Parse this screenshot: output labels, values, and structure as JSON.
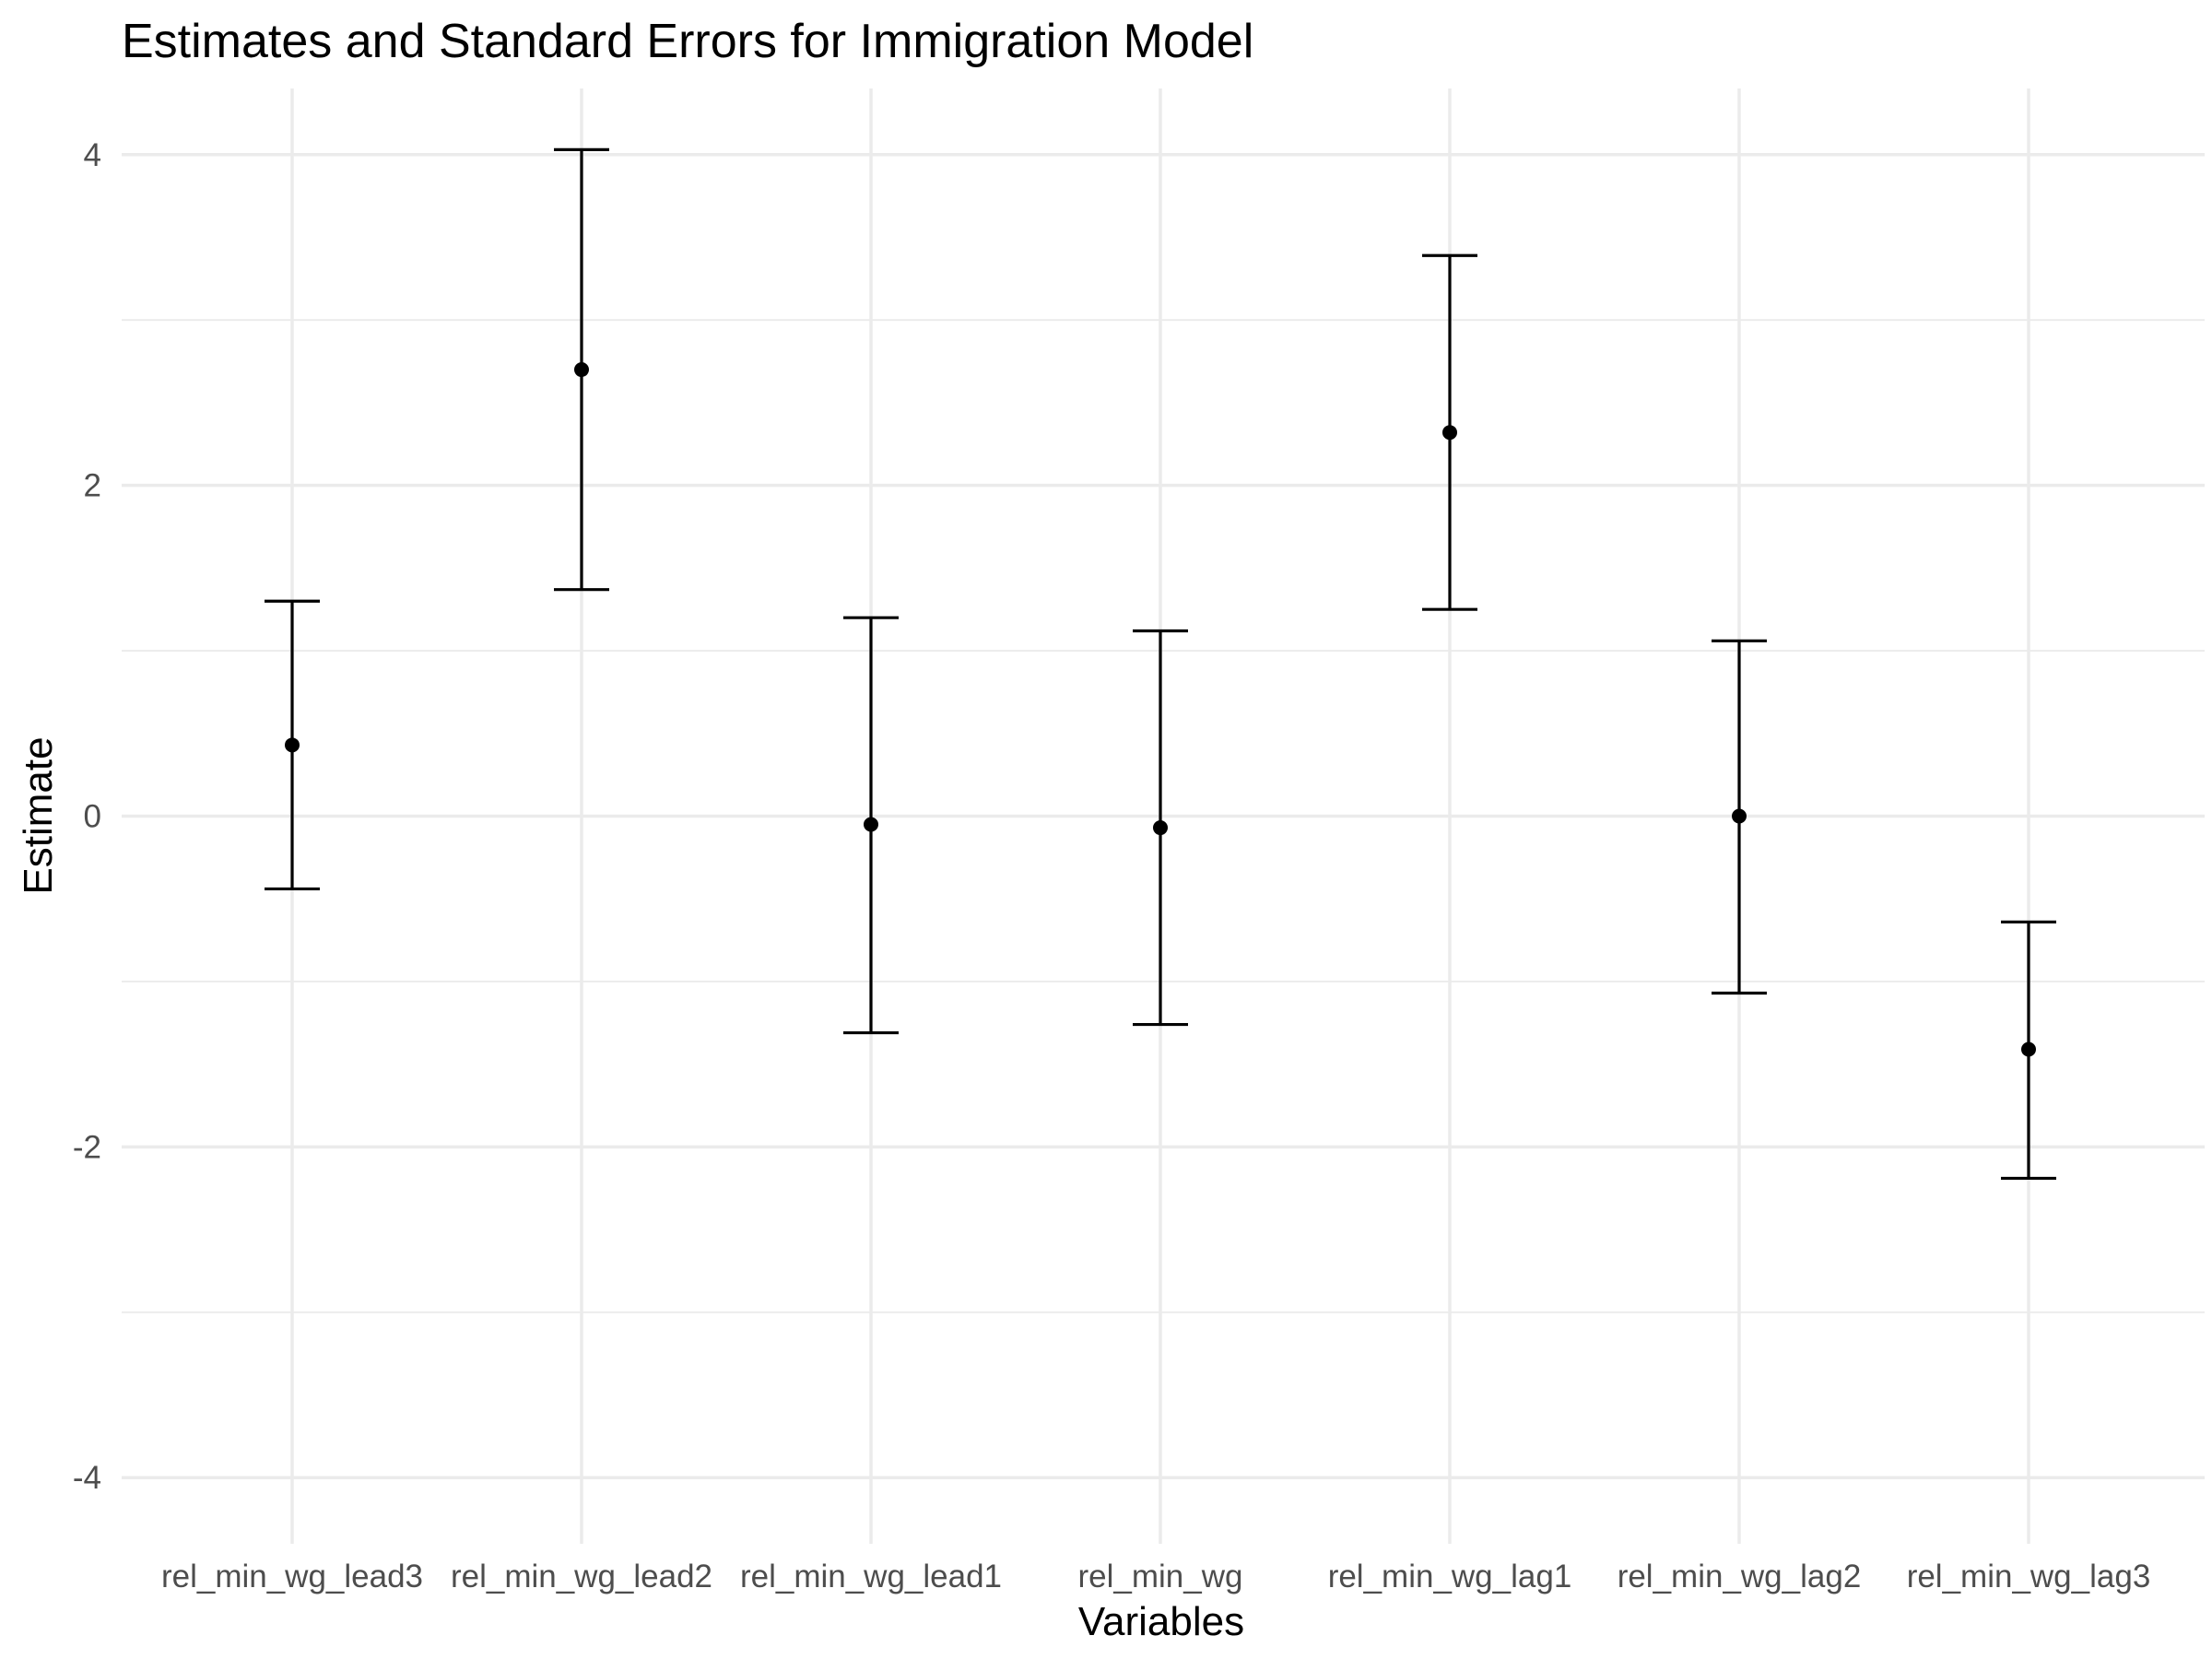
{
  "chart_data": {
    "type": "scatter",
    "title": "Estimates and Standard Errors for Immigration Model",
    "xlabel": "Variables",
    "ylabel": "Estimate",
    "ylim": [
      -4.4,
      4.4
    ],
    "y_ticks": [
      -4,
      -2,
      0,
      2,
      4
    ],
    "y_tick_labels": [
      "-4",
      "-2",
      "0",
      "2",
      "4"
    ],
    "grid": true,
    "legend": "none",
    "categories": [
      "rel_min_wg_lead3",
      "rel_min_wg_lead2",
      "rel_min_wg_lead1",
      "rel_min_wg",
      "rel_min_wg_lag1",
      "rel_min_wg_lag2",
      "rel_min_wg_lag3"
    ],
    "series": [
      {
        "estimates": [
          0.43,
          2.7,
          -0.05,
          -0.07,
          2.32,
          0.0,
          -1.41
        ],
        "lower": [
          -0.44,
          1.37,
          -1.31,
          -1.26,
          1.25,
          -1.07,
          -2.19
        ],
        "upper": [
          1.3,
          4.03,
          1.2,
          1.12,
          3.39,
          1.06,
          -0.64
        ]
      }
    ],
    "colors": {
      "marks": "#000000",
      "grid": "#ebebeb",
      "tick_text": "#4d4d4d"
    }
  }
}
